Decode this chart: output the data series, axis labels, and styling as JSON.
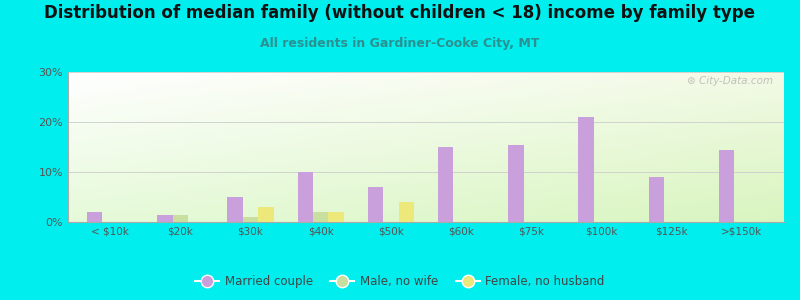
{
  "title": "Distribution of median family (without children < 18) income by family type",
  "subtitle": "All residents in Gardiner-Cooke City, MT",
  "categories": [
    "< $10k",
    "$20k",
    "$30k",
    "$40k",
    "$50k",
    "$60k",
    "$75k",
    "$100k",
    "$125k",
    ">$150k"
  ],
  "married_couple": [
    2.0,
    1.5,
    5.0,
    10.0,
    7.0,
    15.0,
    15.5,
    21.0,
    9.0,
    14.5
  ],
  "male_no_wife": [
    0.0,
    1.5,
    1.0,
    2.0,
    0.0,
    0.0,
    0.0,
    0.0,
    0.0,
    0.0
  ],
  "female_no_husband": [
    0.0,
    0.0,
    3.0,
    2.0,
    4.0,
    0.0,
    0.0,
    0.0,
    0.0,
    0.0
  ],
  "married_color": "#c9a0dc",
  "male_color": "#c8dfa0",
  "female_color": "#ede87a",
  "bg_color": "#00eeee",
  "ylim": [
    0,
    30
  ],
  "yticks": [
    0,
    10,
    20,
    30
  ],
  "bar_width": 0.22,
  "watermark": "City-Data.com",
  "title_fontsize": 12,
  "subtitle_fontsize": 9,
  "subtitle_color": "#2a9090",
  "title_color": "#111111",
  "axis_color": "#444444",
  "tick_color": "#555555",
  "grid_color": "#cccccc"
}
